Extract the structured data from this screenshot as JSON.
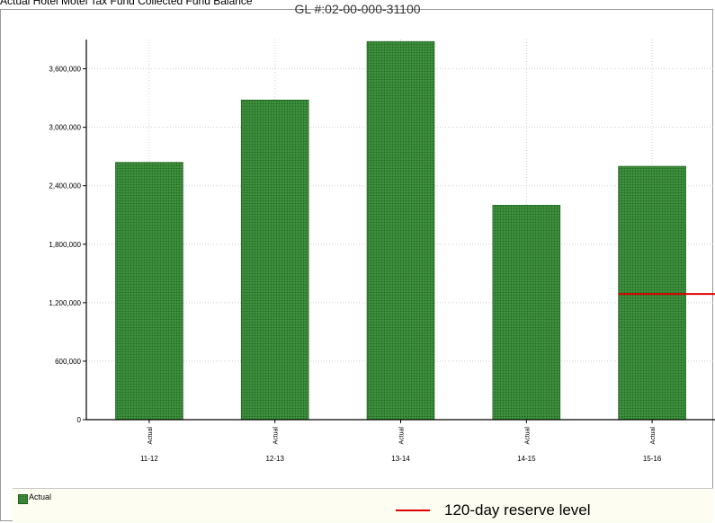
{
  "header": {
    "clipped_text": "Actual Hotel Motel Tax Fund Collected Fund Balance"
  },
  "chart_data": {
    "type": "bar",
    "title": "GL #:02-00-000-31100",
    "categories": [
      "11-12",
      "12-13",
      "13-14",
      "14-15",
      "15-16"
    ],
    "series_label_under_tick": "Actual",
    "series": [
      {
        "name": "Actual",
        "values": [
          2640000,
          3280000,
          3880000,
          2200000,
          2600000
        ]
      }
    ],
    "ylim": [
      0,
      3900000
    ],
    "yticks": [
      0,
      600000,
      1200000,
      1800000,
      2400000,
      3000000,
      3600000
    ],
    "ytick_labels": [
      "0",
      "600,000",
      "1,200,000",
      "1,800,000",
      "2,400,000",
      "3,000,000",
      "3,600,000"
    ],
    "reference_line": {
      "label": "120-day reserve level",
      "value": 1290000,
      "color": "#e00000"
    },
    "grid": true,
    "legend": {
      "placement": "bottom",
      "entries": [
        "Actual",
        "120-day reserve level"
      ]
    },
    "colors": {
      "bar": "#3f8f3f",
      "bar_dot": "#1e6a1e",
      "bar_edge": "#1f5d1f"
    }
  }
}
